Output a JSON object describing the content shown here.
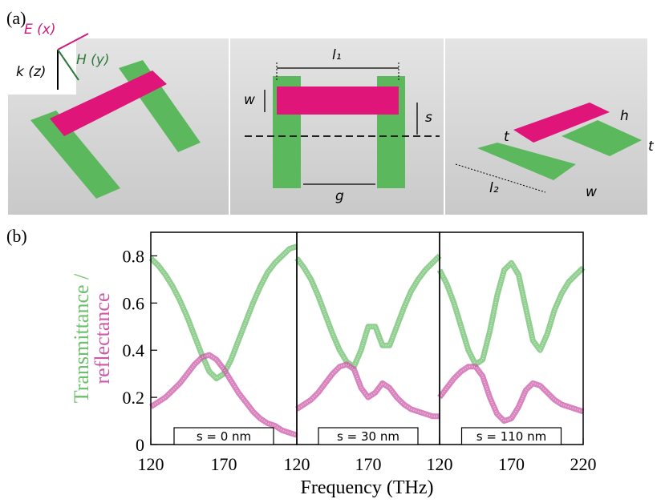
{
  "panel_a": {
    "label": "(a)",
    "e_field": "E (x)",
    "h_field": "H (y)",
    "k_vector": "k (z)",
    "length_1": "l₁",
    "width_1": "w",
    "shift": "s",
    "gap": "g",
    "thickness_1": "t",
    "height": "h",
    "thickness_2": "t",
    "length_2": "l₂",
    "width_2": "w"
  },
  "panel_b": {
    "label": "(b)"
  },
  "chart_data": [
    {
      "type": "line",
      "xlabel": "Frequency (THz)",
      "ylabel": [
        "Transmittance /",
        "reflectance"
      ],
      "annotation": "s = 0 nm",
      "x": [
        120,
        125,
        130,
        135,
        140,
        145,
        150,
        155,
        160,
        165,
        170,
        175,
        180,
        185,
        190,
        195,
        200,
        205,
        210,
        215,
        220
      ],
      "series": [
        {
          "color": "#6cbf6c",
          "values": [
            0.79,
            0.76,
            0.72,
            0.67,
            0.61,
            0.54,
            0.46,
            0.38,
            0.31,
            0.28,
            0.3,
            0.36,
            0.44,
            0.52,
            0.6,
            0.67,
            0.73,
            0.77,
            0.8,
            0.83,
            0.84
          ]
        },
        {
          "color": "#cc5aa8",
          "values": [
            0.16,
            0.18,
            0.2,
            0.23,
            0.26,
            0.3,
            0.34,
            0.37,
            0.38,
            0.36,
            0.32,
            0.27,
            0.22,
            0.18,
            0.14,
            0.11,
            0.09,
            0.08,
            0.06,
            0.05,
            0.04
          ]
        }
      ],
      "xlim": [
        120,
        220
      ],
      "xticks": [
        120,
        170
      ],
      "ylim": [
        0,
        0.9
      ],
      "yticks": [
        0,
        0.2,
        0.4,
        0.6,
        0.8
      ]
    },
    {
      "type": "line",
      "annotation": "s = 30 nm",
      "x": [
        120,
        125,
        130,
        135,
        140,
        145,
        150,
        155,
        160,
        165,
        170,
        175,
        180,
        185,
        190,
        195,
        200,
        205,
        210,
        215,
        220
      ],
      "series": [
        {
          "color": "#6cbf6c",
          "values": [
            0.79,
            0.75,
            0.7,
            0.63,
            0.55,
            0.47,
            0.4,
            0.35,
            0.33,
            0.4,
            0.5,
            0.5,
            0.42,
            0.42,
            0.5,
            0.58,
            0.65,
            0.7,
            0.74,
            0.77,
            0.8
          ]
        },
        {
          "color": "#cc5aa8",
          "values": [
            0.15,
            0.17,
            0.19,
            0.22,
            0.26,
            0.3,
            0.33,
            0.34,
            0.32,
            0.24,
            0.2,
            0.22,
            0.26,
            0.24,
            0.2,
            0.17,
            0.15,
            0.14,
            0.13,
            0.12,
            0.12
          ]
        }
      ],
      "xlim": [
        120,
        220
      ],
      "xticks": [
        120,
        170
      ],
      "ylim": [
        0,
        0.9
      ]
    },
    {
      "type": "line",
      "annotation": "s = 110 nm",
      "x": [
        120,
        125,
        130,
        135,
        140,
        145,
        150,
        155,
        160,
        165,
        170,
        175,
        180,
        185,
        190,
        195,
        200,
        205,
        210,
        215,
        220
      ],
      "series": [
        {
          "color": "#6cbf6c",
          "values": [
            0.74,
            0.68,
            0.6,
            0.5,
            0.4,
            0.34,
            0.36,
            0.48,
            0.63,
            0.74,
            0.77,
            0.72,
            0.58,
            0.44,
            0.4,
            0.47,
            0.57,
            0.64,
            0.69,
            0.72,
            0.75
          ]
        },
        {
          "color": "#cc5aa8",
          "values": [
            0.2,
            0.24,
            0.28,
            0.31,
            0.33,
            0.33,
            0.29,
            0.2,
            0.13,
            0.1,
            0.11,
            0.16,
            0.23,
            0.26,
            0.25,
            0.22,
            0.19,
            0.17,
            0.16,
            0.15,
            0.14
          ]
        }
      ],
      "xlim": [
        120,
        220
      ],
      "xticks": [
        120,
        170,
        220
      ],
      "ylim": [
        0,
        0.9
      ]
    }
  ]
}
